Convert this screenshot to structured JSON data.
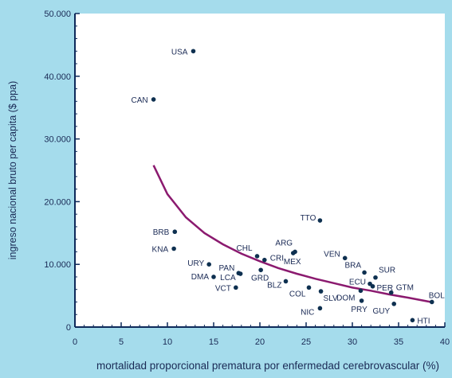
{
  "colors": {
    "background": "#a5dcec",
    "plot_background": "#ffffff",
    "axis": "#0e2a5a",
    "point": "#0e3050",
    "trend": "#8b1a6f",
    "text": "#1a2a55"
  },
  "chart_data": {
    "type": "scatter",
    "title": "",
    "xlabel": "mortalidad proporcional prematura por enfermedad cerebrovascular (%)",
    "ylabel": "ingreso nacional bruto per capita ($ ppa)",
    "xlim": [
      0,
      40
    ],
    "ylim": [
      0,
      50000
    ],
    "x_ticks": [
      0,
      5,
      10,
      15,
      20,
      25,
      30,
      35,
      40
    ],
    "y_ticks": [
      0,
      10000,
      20000,
      30000,
      40000,
      50000
    ],
    "y_tick_labels": [
      "0",
      "10.000",
      "20.000",
      "30.000",
      "40.000",
      "50.000"
    ],
    "grid": false,
    "points": [
      {
        "label": "USA",
        "x": 12.8,
        "y": 44000
      },
      {
        "label": "CAN",
        "x": 8.5,
        "y": 36300
      },
      {
        "label": "TTO",
        "x": 26.5,
        "y": 17000
      },
      {
        "label": "BRB",
        "x": 10.8,
        "y": 15200
      },
      {
        "label": "KNA",
        "x": 10.7,
        "y": 12500
      },
      {
        "label": "ARG",
        "x": 23.8,
        "y": 12000
      },
      {
        "label": "CHL",
        "x": 19.7,
        "y": 11300
      },
      {
        "label": "VEN",
        "x": 29.2,
        "y": 11000
      },
      {
        "label": "CRI",
        "x": 20.5,
        "y": 10700
      },
      {
        "label": "MEX",
        "x": 23.6,
        "y": 11800
      },
      {
        "label": "URY",
        "x": 14.5,
        "y": 10000
      },
      {
        "label": "BRA",
        "x": 31.3,
        "y": 8700
      },
      {
        "label": "SUR",
        "x": 32.5,
        "y": 7900
      },
      {
        "label": "PAN",
        "x": 17.7,
        "y": 8600
      },
      {
        "label": "DMA",
        "x": 15.0,
        "y": 8000
      },
      {
        "label": "LCA",
        "x": 17.9,
        "y": 8500
      },
      {
        "label": "GRD",
        "x": 20.1,
        "y": 9100
      },
      {
        "label": "BLZ",
        "x": 22.8,
        "y": 7300
      },
      {
        "label": "VCT",
        "x": 17.4,
        "y": 6300
      },
      {
        "label": "ECU",
        "x": 31.9,
        "y": 6900
      },
      {
        "label": "PER",
        "x": 32.2,
        "y": 6500
      },
      {
        "label": "COL",
        "x": 25.3,
        "y": 6300
      },
      {
        "label": "GTM",
        "x": 34.2,
        "y": 5500
      },
      {
        "label": "SLV",
        "x": 26.6,
        "y": 5700
      },
      {
        "label": "DOM",
        "x": 30.9,
        "y": 5800
      },
      {
        "label": "BOL",
        "x": 38.6,
        "y": 4000
      },
      {
        "label": "PRY",
        "x": 31.0,
        "y": 4200
      },
      {
        "label": "GUY",
        "x": 34.5,
        "y": 3700
      },
      {
        "label": "NIC",
        "x": 26.5,
        "y": 3000
      },
      {
        "label": "HTI",
        "x": 36.5,
        "y": 1100
      }
    ],
    "trend_line": {
      "type": "power",
      "x": [
        8.5,
        10,
        12,
        14,
        16,
        18,
        20,
        22,
        24,
        26,
        28,
        30,
        32,
        34,
        36,
        38.5
      ],
      "y": [
        25800,
        21200,
        17500,
        15000,
        13200,
        11700,
        10500,
        9400,
        8500,
        7700,
        7000,
        6300,
        5800,
        5200,
        4700,
        4000
      ]
    }
  }
}
